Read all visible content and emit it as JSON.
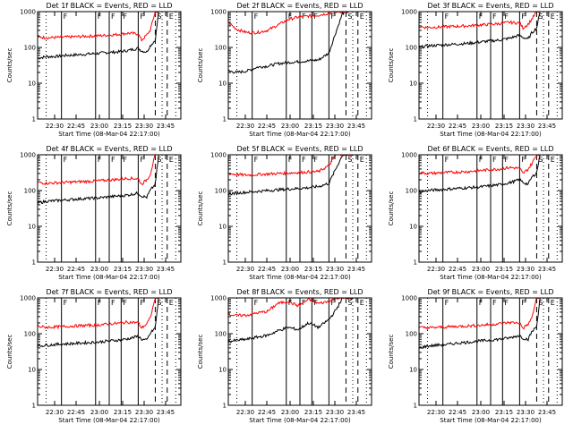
{
  "colors": {
    "events": "#000000",
    "lld": "#ff0000",
    "axes": "#000000",
    "background": "#ffffff"
  },
  "common": {
    "xlabel": "Start Time (08-Mar-04 22:17:00)",
    "ylabel": "Counts/sec",
    "x_ticks": [
      "22:30",
      "22:45",
      "23:00",
      "23:15",
      "23:30",
      "23:45"
    ],
    "y_ticks": [
      "1",
      "10",
      "100",
      "1000"
    ]
  },
  "chart_data": [
    {
      "type": "line",
      "title": "Det 1f BLACK = Events, RED = LLD",
      "y_scale": "log",
      "ylim": [
        1,
        1000
      ],
      "xlim_min": [
        9,
        93
      ],
      "grid": false,
      "markers": [
        {
          "t": 23,
          "label": "F"
        },
        {
          "t": 43,
          "label": "F"
        },
        {
          "t": 51,
          "label": "F"
        },
        {
          "t": 58,
          "label": "F"
        },
        {
          "t": 68,
          "label": "F"
        },
        {
          "t": 78,
          "label": "S"
        },
        {
          "t": 85,
          "label": "E"
        }
      ],
      "x_min": [
        9,
        14,
        20,
        26,
        32,
        38,
        44,
        50,
        56,
        62,
        68,
        70,
        73,
        75,
        78,
        80
      ],
      "series": [
        {
          "name": "BLACK = Events",
          "values": [
            50,
            55,
            56,
            60,
            62,
            65,
            68,
            72,
            75,
            82,
            95,
            80,
            75,
            110,
            160,
            1000
          ]
        },
        {
          "name": "RED = LLD",
          "values": [
            200,
            185,
            190,
            195,
            200,
            205,
            210,
            220,
            230,
            250,
            240,
            160,
            220,
            300,
            1000,
            1000
          ]
        }
      ]
    },
    {
      "type": "line",
      "title": "Det 2f BLACK = Events, RED = LLD",
      "y_scale": "log",
      "ylim": [
        1,
        1000
      ],
      "xlim_min": [
        9,
        93
      ],
      "grid": false,
      "markers": [
        {
          "t": 23,
          "label": "F"
        },
        {
          "t": 43,
          "label": "F"
        },
        {
          "t": 51,
          "label": "F"
        },
        {
          "t": 58,
          "label": "F"
        },
        {
          "t": 68,
          "label": "F"
        },
        {
          "t": 78,
          "label": "S"
        },
        {
          "t": 85,
          "label": "E"
        }
      ],
      "x_min": [
        9,
        14,
        20,
        26,
        32,
        38,
        44,
        50,
        56,
        62,
        68,
        72,
        76,
        79,
        82
      ],
      "series": [
        {
          "name": "BLACK = Events",
          "values": [
            22,
            20,
            22,
            28,
            30,
            35,
            38,
            40,
            42,
            45,
            70,
            260,
            900,
            1000,
            1000
          ]
        },
        {
          "name": "RED = LLD",
          "values": [
            500,
            320,
            260,
            260,
            300,
            420,
            600,
            700,
            750,
            800,
            900,
            1000,
            1000,
            1000,
            1000
          ]
        }
      ]
    },
    {
      "type": "line",
      "title": "Det 3f BLACK = Events, RED = LLD",
      "y_scale": "log",
      "ylim": [
        1,
        1000
      ],
      "xlim_min": [
        9,
        93
      ],
      "grid": false,
      "markers": [
        {
          "t": 23,
          "label": "F"
        },
        {
          "t": 43,
          "label": "F"
        },
        {
          "t": 51,
          "label": "F"
        },
        {
          "t": 58,
          "label": "F"
        },
        {
          "t": 68,
          "label": "F"
        },
        {
          "t": 78,
          "label": "S"
        },
        {
          "t": 85,
          "label": "E"
        }
      ],
      "x_min": [
        9,
        14,
        20,
        26,
        32,
        38,
        44,
        50,
        56,
        62,
        68,
        70,
        73,
        75,
        78,
        80
      ],
      "series": [
        {
          "name": "BLACK = Events",
          "values": [
            100,
            110,
            115,
            120,
            125,
            130,
            140,
            150,
            160,
            180,
            220,
            190,
            170,
            250,
            350,
            1000
          ]
        },
        {
          "name": "RED = LLD",
          "values": [
            380,
            360,
            370,
            380,
            390,
            400,
            420,
            440,
            460,
            500,
            480,
            350,
            450,
            600,
            1000,
            1000
          ]
        }
      ]
    },
    {
      "type": "line",
      "title": "Det 4f BLACK = Events, RED = LLD",
      "y_scale": "log",
      "ylim": [
        1,
        1000
      ],
      "xlim_min": [
        9,
        93
      ],
      "grid": false,
      "markers": [
        {
          "t": 23,
          "label": "F"
        },
        {
          "t": 43,
          "label": "F"
        },
        {
          "t": 51,
          "label": "F"
        },
        {
          "t": 58,
          "label": "F"
        },
        {
          "t": 68,
          "label": "F"
        },
        {
          "t": 78,
          "label": "S"
        },
        {
          "t": 85,
          "label": "E"
        }
      ],
      "x_min": [
        9,
        14,
        20,
        26,
        32,
        38,
        44,
        50,
        56,
        62,
        68,
        70,
        73,
        75,
        78,
        80
      ],
      "series": [
        {
          "name": "BLACK = Events",
          "values": [
            45,
            50,
            52,
            55,
            58,
            60,
            62,
            66,
            70,
            75,
            85,
            70,
            65,
            100,
            150,
            1000
          ]
        },
        {
          "name": "RED = LLD",
          "values": [
            170,
            160,
            165,
            170,
            175,
            180,
            185,
            195,
            205,
            220,
            215,
            150,
            200,
            280,
            1000,
            1000
          ]
        }
      ]
    },
    {
      "type": "line",
      "title": "Det 5f BLACK = Events, RED = LLD",
      "y_scale": "log",
      "ylim": [
        1,
        1000
      ],
      "xlim_min": [
        9,
        93
      ],
      "grid": false,
      "markers": [
        {
          "t": 23,
          "label": "F"
        },
        {
          "t": 43,
          "label": "F"
        },
        {
          "t": 51,
          "label": "F"
        },
        {
          "t": 58,
          "label": "F"
        },
        {
          "t": 68,
          "label": "F"
        },
        {
          "t": 78,
          "label": "S"
        },
        {
          "t": 85,
          "label": "E"
        }
      ],
      "x_min": [
        9,
        14,
        20,
        26,
        32,
        38,
        44,
        50,
        56,
        62,
        68,
        72,
        76,
        79,
        82
      ],
      "series": [
        {
          "name": "BLACK = Events",
          "values": [
            80,
            85,
            90,
            95,
            100,
            105,
            110,
            115,
            120,
            130,
            160,
            400,
            1000,
            1000,
            1000
          ]
        },
        {
          "name": "RED = LLD",
          "values": [
            300,
            280,
            270,
            280,
            290,
            300,
            310,
            320,
            330,
            340,
            500,
            1000,
            1000,
            1000,
            1000
          ]
        }
      ]
    },
    {
      "type": "line",
      "title": "Det 6f BLACK = Events, RED = LLD",
      "y_scale": "log",
      "ylim": [
        1,
        1000
      ],
      "xlim_min": [
        9,
        93
      ],
      "grid": false,
      "markers": [
        {
          "t": 23,
          "label": "F"
        },
        {
          "t": 43,
          "label": "F"
        },
        {
          "t": 51,
          "label": "F"
        },
        {
          "t": 58,
          "label": "F"
        },
        {
          "t": 68,
          "label": "F"
        },
        {
          "t": 78,
          "label": "S"
        },
        {
          "t": 85,
          "label": "E"
        }
      ],
      "x_min": [
        9,
        14,
        20,
        26,
        32,
        38,
        44,
        50,
        56,
        62,
        68,
        70,
        73,
        75,
        78,
        80
      ],
      "series": [
        {
          "name": "BLACK = Events",
          "values": [
            90,
            100,
            105,
            110,
            115,
            120,
            125,
            135,
            145,
            165,
            200,
            170,
            150,
            230,
            320,
            1000
          ]
        },
        {
          "name": "RED = LLD",
          "values": [
            320,
            300,
            310,
            320,
            330,
            340,
            360,
            380,
            400,
            440,
            420,
            300,
            400,
            550,
            1000,
            1000
          ]
        }
      ]
    },
    {
      "type": "line",
      "title": "Det 7f BLACK = Events, RED = LLD",
      "y_scale": "log",
      "ylim": [
        1,
        1000
      ],
      "xlim_min": [
        9,
        93
      ],
      "grid": false,
      "markers": [
        {
          "t": 23,
          "label": "F"
        },
        {
          "t": 43,
          "label": "F"
        },
        {
          "t": 51,
          "label": "F"
        },
        {
          "t": 58,
          "label": "F"
        },
        {
          "t": 68,
          "label": "F"
        },
        {
          "t": 78,
          "label": "S"
        },
        {
          "t": 85,
          "label": "E"
        }
      ],
      "x_min": [
        9,
        14,
        20,
        26,
        32,
        38,
        44,
        50,
        56,
        62,
        68,
        70,
        73,
        75,
        78,
        80
      ],
      "series": [
        {
          "name": "BLACK = Events",
          "values": [
            45,
            48,
            50,
            52,
            54,
            56,
            58,
            62,
            66,
            72,
            85,
            70,
            65,
            100,
            150,
            1000
          ]
        },
        {
          "name": "RED = LLD",
          "values": [
            160,
            150,
            155,
            160,
            165,
            170,
            175,
            185,
            195,
            210,
            205,
            145,
            190,
            270,
            1000,
            1000
          ]
        }
      ]
    },
    {
      "type": "line",
      "title": "Det 8f BLACK = Events, RED = LLD",
      "y_scale": "log",
      "ylim": [
        1,
        1000
      ],
      "xlim_min": [
        9,
        93
      ],
      "grid": false,
      "markers": [
        {
          "t": 23,
          "label": "F"
        },
        {
          "t": 43,
          "label": "F"
        },
        {
          "t": 51,
          "label": "F"
        },
        {
          "t": 58,
          "label": "F"
        },
        {
          "t": 68,
          "label": "F"
        },
        {
          "t": 78,
          "label": "S"
        },
        {
          "t": 85,
          "label": "E"
        }
      ],
      "x_min": [
        9,
        14,
        20,
        26,
        32,
        38,
        44,
        50,
        56,
        62,
        68,
        72,
        76,
        79,
        82
      ],
      "series": [
        {
          "name": "BLACK = Events",
          "values": [
            60,
            65,
            70,
            80,
            90,
            120,
            150,
            130,
            200,
            150,
            250,
            450,
            1000,
            1000,
            1000
          ]
        },
        {
          "name": "RED = LLD",
          "values": [
            350,
            320,
            330,
            380,
            420,
            700,
            800,
            600,
            900,
            700,
            800,
            1000,
            1000,
            1000,
            1000
          ]
        }
      ]
    },
    {
      "type": "line",
      "title": "Det 9f BLACK = Events, RED = LLD",
      "y_scale": "log",
      "ylim": [
        1,
        1000
      ],
      "xlim_min": [
        9,
        93
      ],
      "grid": false,
      "markers": [
        {
          "t": 23,
          "label": "F"
        },
        {
          "t": 43,
          "label": "F"
        },
        {
          "t": 51,
          "label": "F"
        },
        {
          "t": 58,
          "label": "F"
        },
        {
          "t": 68,
          "label": "F"
        },
        {
          "t": 78,
          "label": "S"
        },
        {
          "t": 85,
          "label": "E"
        }
      ],
      "x_min": [
        9,
        14,
        20,
        26,
        32,
        38,
        44,
        50,
        56,
        62,
        68,
        70,
        73,
        75,
        78,
        80
      ],
      "series": [
        {
          "name": "BLACK = Events",
          "values": [
            40,
            45,
            48,
            50,
            55,
            58,
            62,
            66,
            70,
            76,
            90,
            75,
            70,
            110,
            160,
            1000
          ]
        },
        {
          "name": "RED = LLD",
          "values": [
            150,
            145,
            150,
            155,
            160,
            165,
            170,
            180,
            190,
            205,
            200,
            140,
            185,
            260,
            1000,
            1000
          ]
        }
      ]
    }
  ]
}
